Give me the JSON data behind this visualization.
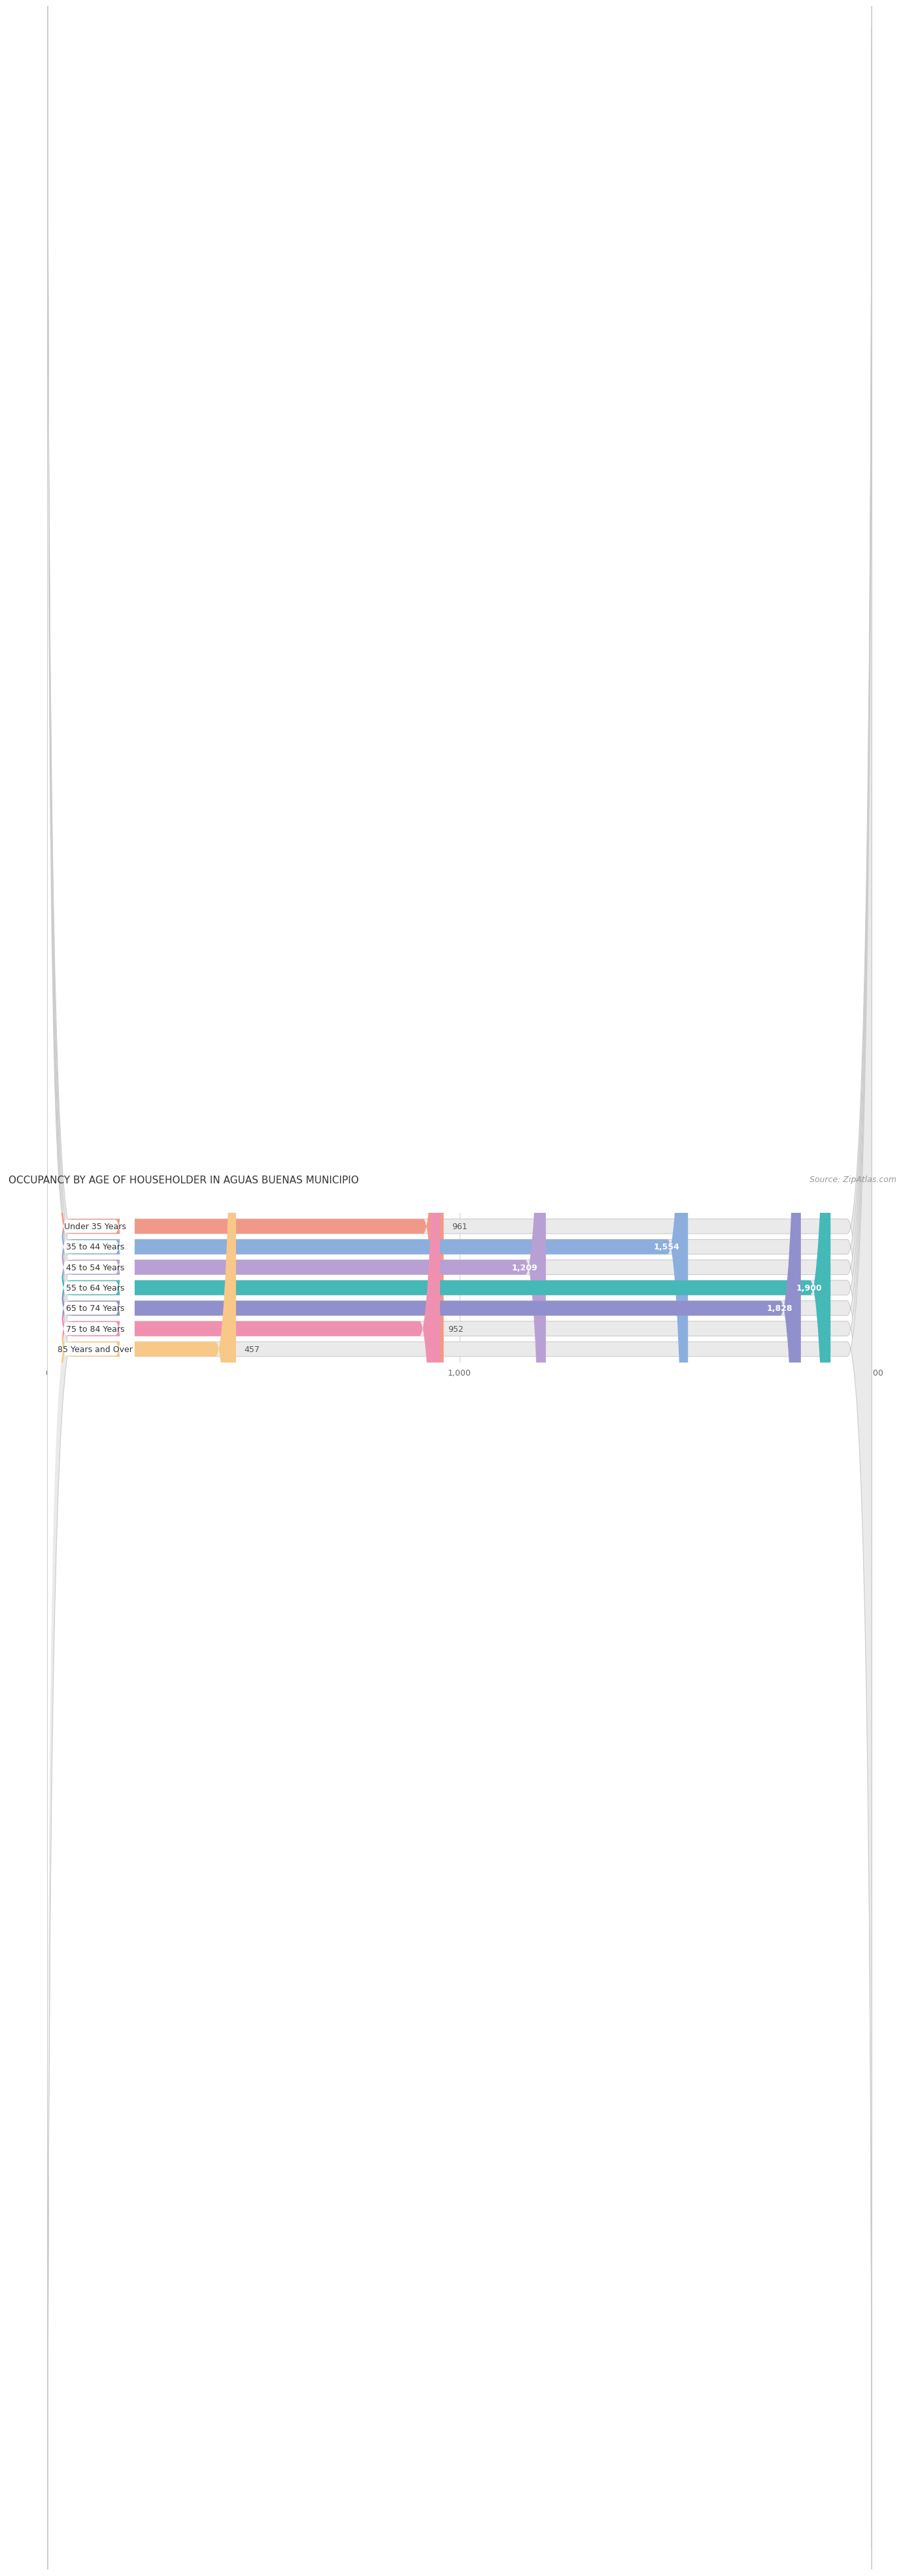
{
  "title": "OCCUPANCY BY AGE OF HOUSEHOLDER IN AGUAS BUENAS MUNICIPIO",
  "source": "Source: ZipAtlas.com",
  "categories": [
    "Under 35 Years",
    "35 to 44 Years",
    "45 to 54 Years",
    "55 to 64 Years",
    "65 to 74 Years",
    "75 to 84 Years",
    "85 Years and Over"
  ],
  "values": [
    961,
    1554,
    1209,
    1900,
    1828,
    952,
    457
  ],
  "bar_colors": [
    "#F0998A",
    "#8BAEDD",
    "#B8A0D4",
    "#45B8B8",
    "#9090CC",
    "#F090B0",
    "#F8C888"
  ],
  "bar_bg_color": "#EAEAEA",
  "xlim": [
    0,
    2000
  ],
  "xticks": [
    0,
    1000,
    2000
  ],
  "background_color": "#ffffff",
  "title_fontsize": 11,
  "source_fontsize": 9,
  "bar_label_fontsize": 9,
  "category_fontsize": 9
}
